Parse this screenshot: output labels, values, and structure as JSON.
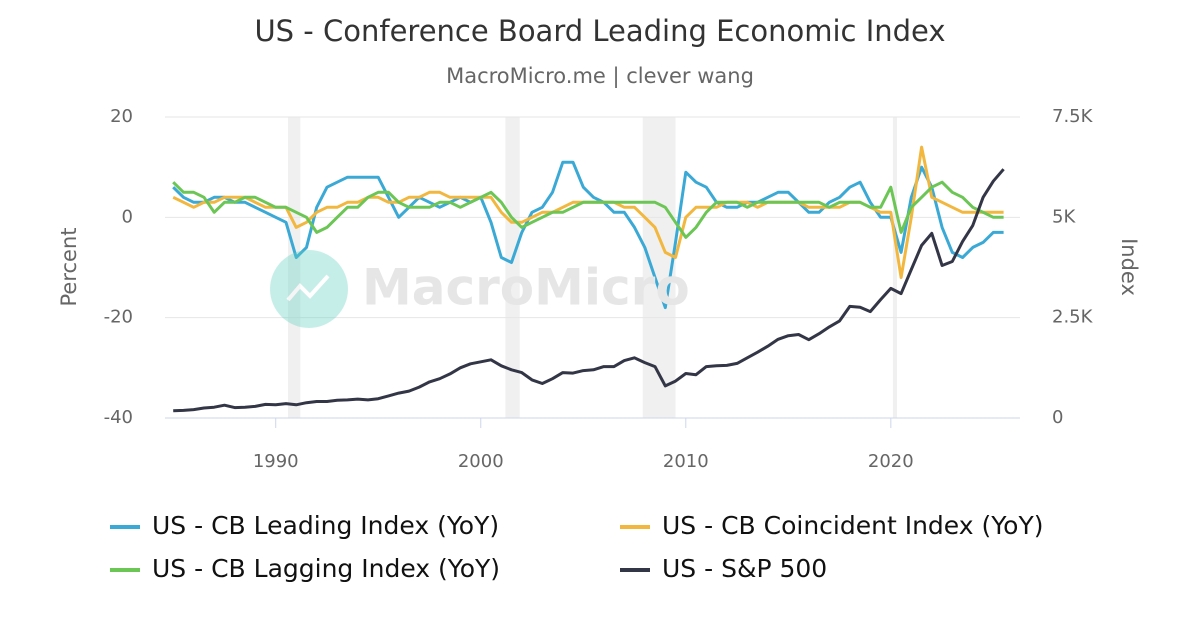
{
  "chart_data": {
    "type": "line",
    "title": "US - Conference Board Leading Economic Index",
    "subtitle": "MacroMicro.me | clever wang",
    "watermark": "MacroMicro",
    "ylabel": "Percent",
    "y2label": "Index",
    "xlim": [
      1984.6,
      2026.3
    ],
    "xticks": [
      1990,
      2000,
      2010,
      2020
    ],
    "ylim": [
      -40,
      20
    ],
    "yticks": [
      -40,
      -20,
      0,
      20
    ],
    "y2lim": [
      0,
      7500
    ],
    "y2ticks": [
      0,
      {
        "value": 2500,
        "label": "2.5K"
      },
      {
        "value": 5000,
        "label": "5K"
      },
      {
        "value": 7500,
        "label": "7.5K"
      }
    ],
    "grid": true,
    "legend": "bottom",
    "shaded_periods": [
      [
        1990.6,
        1991.2
      ],
      [
        2001.2,
        2001.9
      ],
      [
        2007.9,
        2009.5
      ],
      [
        2020.1,
        2020.3
      ]
    ],
    "x": [
      1985,
      1985.5,
      1986,
      1986.5,
      1987,
      1987.5,
      1988,
      1988.5,
      1989,
      1989.5,
      1990,
      1990.5,
      1991,
      1991.5,
      1992,
      1992.5,
      1993,
      1993.5,
      1994,
      1994.5,
      1995,
      1995.5,
      1996,
      1996.5,
      1997,
      1997.5,
      1998,
      1998.5,
      1999,
      1999.5,
      2000,
      2000.5,
      2001,
      2001.5,
      2002,
      2002.5,
      2003,
      2003.5,
      2004,
      2004.5,
      2005,
      2005.5,
      2006,
      2006.5,
      2007,
      2007.5,
      2008,
      2008.5,
      2009,
      2009.5,
      2010,
      2010.5,
      2011,
      2011.5,
      2012,
      2012.5,
      2013,
      2013.5,
      2014,
      2014.5,
      2015,
      2015.5,
      2016,
      2016.5,
      2017,
      2017.5,
      2018,
      2018.5,
      2019,
      2019.5,
      2020,
      2020.5,
      2021,
      2021.5,
      2022,
      2022.5,
      2023,
      2023.5,
      2024,
      2024.5,
      2025,
      2025.5
    ],
    "series": [
      {
        "name": "US - CB Leading Index (YoY)",
        "color": "#3ba9d5",
        "axis": "y",
        "values": [
          6,
          4,
          3,
          3,
          4,
          4,
          3,
          3,
          2,
          1,
          0,
          -1,
          -8,
          -6,
          2,
          6,
          7,
          8,
          8,
          8,
          8,
          4,
          0,
          2,
          4,
          3,
          2,
          3,
          4,
          3,
          4,
          -1,
          -8,
          -9,
          -3,
          1,
          2,
          5,
          11,
          11,
          6,
          4,
          3,
          1,
          1,
          -2,
          -6,
          -12,
          -18,
          -5,
          9,
          7,
          6,
          3,
          2,
          2,
          3,
          3,
          4,
          5,
          5,
          3,
          1,
          1,
          3,
          4,
          6,
          7,
          3,
          0,
          0,
          -7,
          4,
          10,
          6,
          -2,
          -7,
          -8,
          -6,
          -5,
          -3,
          -3
        ]
      },
      {
        "name": "US - CB Coincident Index (YoY)",
        "color": "#f2b73f",
        "axis": "y",
        "values": [
          4,
          3,
          2,
          3,
          3,
          4,
          4,
          4,
          3,
          2,
          2,
          2,
          -2,
          -1,
          1,
          2,
          2,
          3,
          3,
          4,
          4,
          3,
          3,
          4,
          4,
          5,
          5,
          4,
          4,
          4,
          4,
          4,
          1,
          -1,
          -1,
          0,
          1,
          1,
          2,
          3,
          3,
          3,
          3,
          3,
          2,
          2,
          0,
          -2,
          -7,
          -8,
          0,
          2,
          2,
          2,
          3,
          3,
          3,
          2,
          3,
          3,
          3,
          3,
          2,
          2,
          2,
          2,
          3,
          3,
          2,
          1,
          1,
          -12,
          0,
          14,
          4,
          3,
          2,
          1,
          1,
          1,
          1,
          1
        ]
      },
      {
        "name": "US - CB Lagging Index (YoY)",
        "color": "#6cc655",
        "axis": "y",
        "values": [
          7,
          5,
          5,
          4,
          1,
          3,
          3,
          4,
          4,
          3,
          2,
          2,
          1,
          0,
          -3,
          -2,
          0,
          2,
          2,
          4,
          5,
          5,
          3,
          2,
          2,
          2,
          3,
          3,
          2,
          3,
          4,
          5,
          3,
          0,
          -2,
          -1,
          0,
          1,
          1,
          2,
          3,
          3,
          3,
          3,
          3,
          3,
          3,
          3,
          2,
          -1,
          -4,
          -2,
          1,
          3,
          3,
          3,
          2,
          3,
          3,
          3,
          3,
          3,
          3,
          3,
          2,
          3,
          3,
          3,
          2,
          2,
          6,
          -3,
          2,
          4,
          6,
          7,
          5,
          4,
          2,
          1,
          0,
          0
        ]
      },
      {
        "name": "US - S&P 500",
        "color": "#333646",
        "axis": "y2",
        "values": [
          180,
          190,
          210,
          250,
          270,
          320,
          260,
          270,
          290,
          340,
          330,
          360,
          330,
          380,
          410,
          410,
          440,
          450,
          470,
          450,
          480,
          550,
          620,
          670,
          770,
          900,
          980,
          1100,
          1250,
          1350,
          1400,
          1450,
          1300,
          1200,
          1130,
          950,
          860,
          980,
          1130,
          1120,
          1180,
          1200,
          1280,
          1280,
          1430,
          1500,
          1380,
          1280,
          800,
          920,
          1110,
          1080,
          1280,
          1300,
          1310,
          1360,
          1500,
          1640,
          1790,
          1960,
          2050,
          2080,
          1950,
          2100,
          2270,
          2420,
          2780,
          2760,
          2650,
          2950,
          3230,
          3100,
          3700,
          4300,
          4600,
          3800,
          3900,
          4400,
          4800,
          5500,
          5900,
          6200
        ]
      }
    ]
  }
}
